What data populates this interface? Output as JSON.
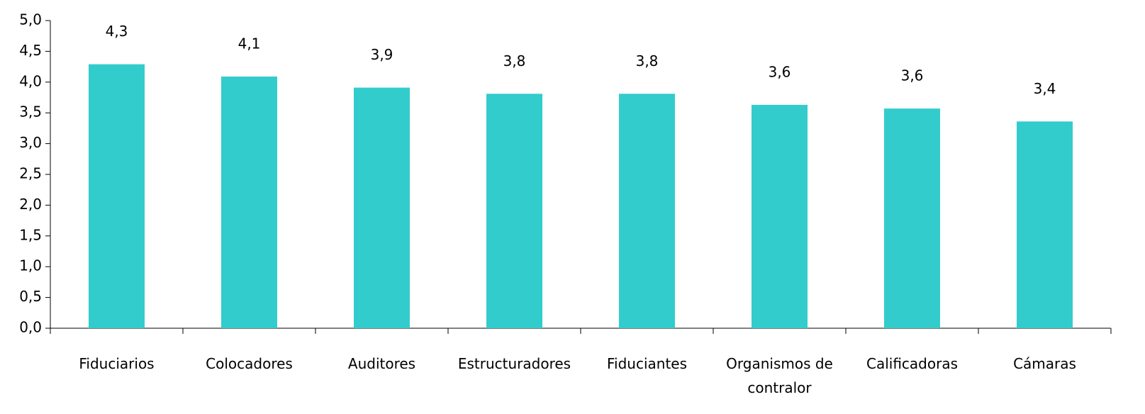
{
  "chart_data": {
    "type": "bar",
    "categories": [
      "Fiduciarios",
      "Colocadores",
      "Auditores",
      "Estructuradores",
      "Fiduciantes",
      "Organismos de contralor",
      "Calificadoras",
      "Cámaras"
    ],
    "values": [
      4.29,
      4.09,
      3.91,
      3.81,
      3.81,
      3.63,
      3.57,
      3.36
    ],
    "value_labels": [
      "4,3",
      "4,1",
      "3,9",
      "3,8",
      "3,8",
      "3,6",
      "3,6",
      "3,4"
    ],
    "color": "#33cccc",
    "ylim": [
      0,
      5
    ],
    "yticks": [
      {
        "value": 0,
        "label": "0,0"
      },
      {
        "value": 0.5,
        "label": "0,5"
      },
      {
        "value": 1,
        "label": "1,0"
      },
      {
        "value": 1.5,
        "label": "1,5"
      },
      {
        "value": 2,
        "label": "2,0"
      },
      {
        "value": 2.5,
        "label": "2,5"
      },
      {
        "value": 3,
        "label": "3,0"
      },
      {
        "value": 3.5,
        "label": "3,5"
      },
      {
        "value": 4,
        "label": "4,0"
      },
      {
        "value": 4.5,
        "label": "4,5"
      },
      {
        "value": 5,
        "label": "5,0"
      }
    ],
    "grid": false
  }
}
